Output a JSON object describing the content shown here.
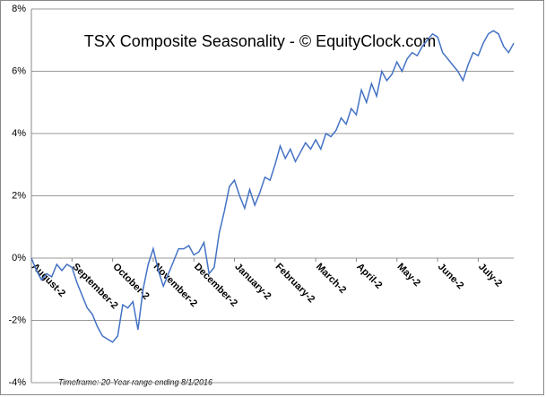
{
  "chart_data": {
    "type": "line",
    "title": "TSX Composite Seasonality - © EquityClock.com",
    "footnote": "Timeframe: 20-Year range ending 8/1/2016",
    "color": "#4472c4",
    "xlim": [
      0,
      95
    ],
    "xticks": [
      {
        "value": 0,
        "label": "August-2"
      },
      {
        "value": 8,
        "label": "September-2"
      },
      {
        "value": 16,
        "label": "October-2"
      },
      {
        "value": 24,
        "label": "November-2"
      },
      {
        "value": 32,
        "label": "December-2"
      },
      {
        "value": 40,
        "label": "January-2"
      },
      {
        "value": 48,
        "label": "February-2"
      },
      {
        "value": 56,
        "label": "March-2"
      },
      {
        "value": 64,
        "label": "April-2"
      },
      {
        "value": 72,
        "label": "May-2"
      },
      {
        "value": 80,
        "label": "June-2"
      },
      {
        "value": 88,
        "label": "July-2"
      }
    ],
    "ylim": [
      -4,
      8
    ],
    "yticks": [
      {
        "value": -4,
        "label": "-4%"
      },
      {
        "value": -2,
        "label": "-2%"
      },
      {
        "value": 0,
        "label": "0%"
      },
      {
        "value": 2,
        "label": "2%"
      },
      {
        "value": 4,
        "label": "4%"
      },
      {
        "value": 6,
        "label": "6%"
      },
      {
        "value": 8,
        "label": "8%"
      }
    ],
    "grid": true,
    "values": [
      0,
      -0.4,
      -0.7,
      -0.5,
      -0.6,
      -0.2,
      -0.4,
      -0.2,
      -0.3,
      -0.8,
      -1.2,
      -1.6,
      -1.8,
      -2.2,
      -2.5,
      -2.6,
      -2.7,
      -2.5,
      -1.5,
      -1.6,
      -1.4,
      -2.3,
      -1.0,
      -0.2,
      0.3,
      -0.4,
      -0.9,
      -0.5,
      -0.1,
      0.3,
      0.3,
      0.4,
      0.1,
      0.2,
      0.5,
      -0.5,
      -0.3,
      0.8,
      1.5,
      2.3,
      2.5,
      2.0,
      1.6,
      2.2,
      1.7,
      2.1,
      2.6,
      2.5,
      3.0,
      3.6,
      3.2,
      3.5,
      3.1,
      3.4,
      3.7,
      3.5,
      3.8,
      3.5,
      4.0,
      3.9,
      4.1,
      4.5,
      4.3,
      4.8,
      4.6,
      5.4,
      5.0,
      5.6,
      5.2,
      6.0,
      5.7,
      5.9,
      6.3,
      6.0,
      6.4,
      6.6,
      6.5,
      6.8,
      7.0,
      7.2,
      7.1,
      6.6,
      6.4,
      6.2,
      6.0,
      5.7,
      6.2,
      6.6,
      6.5,
      6.9,
      7.2,
      7.3,
      7.2,
      6.8,
      6.6,
      6.9
    ]
  }
}
